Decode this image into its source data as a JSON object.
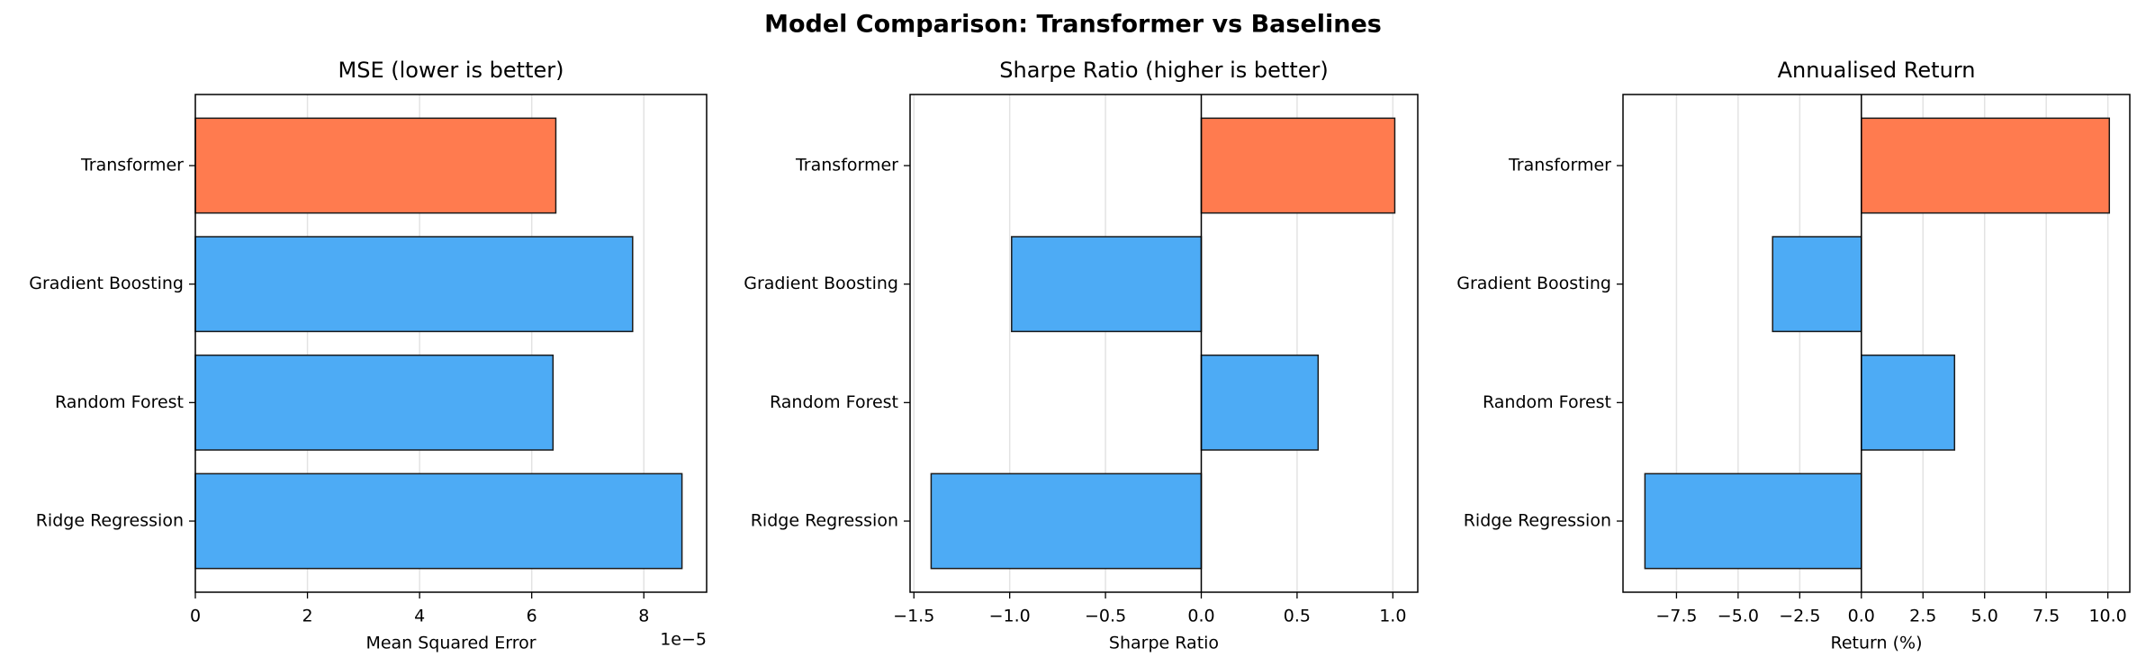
{
  "title": "Model Comparison: Transformer vs Baselines",
  "chart_data": [
    {
      "type": "barh",
      "title": "MSE (lower is better)",
      "xlabel": "Mean Squared Error",
      "x_offset_label": "1e−5",
      "categories": [
        "Transformer",
        "Gradient Boosting",
        "Random Forest",
        "Ridge Regression"
      ],
      "values": [
        6.43,
        7.8,
        6.38,
        8.68
      ],
      "colors": [
        "#ff7b4f",
        "#4dabf5",
        "#4dabf5",
        "#4dabf5"
      ],
      "xlim": [
        0,
        9.12
      ],
      "xticks": [
        0,
        2,
        4,
        6,
        8
      ],
      "grid": true,
      "zero_line": false
    },
    {
      "type": "barh",
      "title": "Sharpe Ratio (higher is better)",
      "xlabel": "Sharpe Ratio",
      "categories": [
        "Transformer",
        "Gradient Boosting",
        "Random Forest",
        "Ridge Regression"
      ],
      "values": [
        1.01,
        -0.99,
        0.61,
        -1.41
      ],
      "colors": [
        "#ff7b4f",
        "#4dabf5",
        "#4dabf5",
        "#4dabf5"
      ],
      "xlim": [
        -1.52,
        1.13
      ],
      "xticks": [
        {
          "value": -1.5,
          "label": "−1.5"
        },
        {
          "value": -1.0,
          "label": "−1.0"
        },
        {
          "value": -0.5,
          "label": "−0.5"
        },
        {
          "value": 0,
          "label": "0.0"
        },
        {
          "value": 0.5,
          "label": "0.5"
        },
        {
          "value": 1.0,
          "label": "1.0"
        }
      ],
      "grid": true,
      "zero_line": true
    },
    {
      "type": "barh",
      "title": "Annualised Return",
      "xlabel": "Return (%)",
      "categories": [
        "Transformer",
        "Gradient Boosting",
        "Random Forest",
        "Ridge Regression"
      ],
      "values": [
        10.06,
        -3.6,
        3.78,
        -8.78
      ],
      "colors": [
        "#ff7b4f",
        "#4dabf5",
        "#4dabf5",
        "#4dabf5"
      ],
      "xlim": [
        -9.67,
        10.89
      ],
      "xticks": [
        {
          "value": -7.5,
          "label": "−7.5"
        },
        {
          "value": -5.0,
          "label": "−5.0"
        },
        {
          "value": -2.5,
          "label": "−2.5"
        },
        {
          "value": 0,
          "label": "0.0"
        },
        {
          "value": 2.5,
          "label": "2.5"
        },
        {
          "value": 5.0,
          "label": "5.0"
        },
        {
          "value": 7.5,
          "label": "7.5"
        },
        {
          "value": 10.0,
          "label": "10.0"
        }
      ],
      "grid": true,
      "zero_line": true
    }
  ]
}
